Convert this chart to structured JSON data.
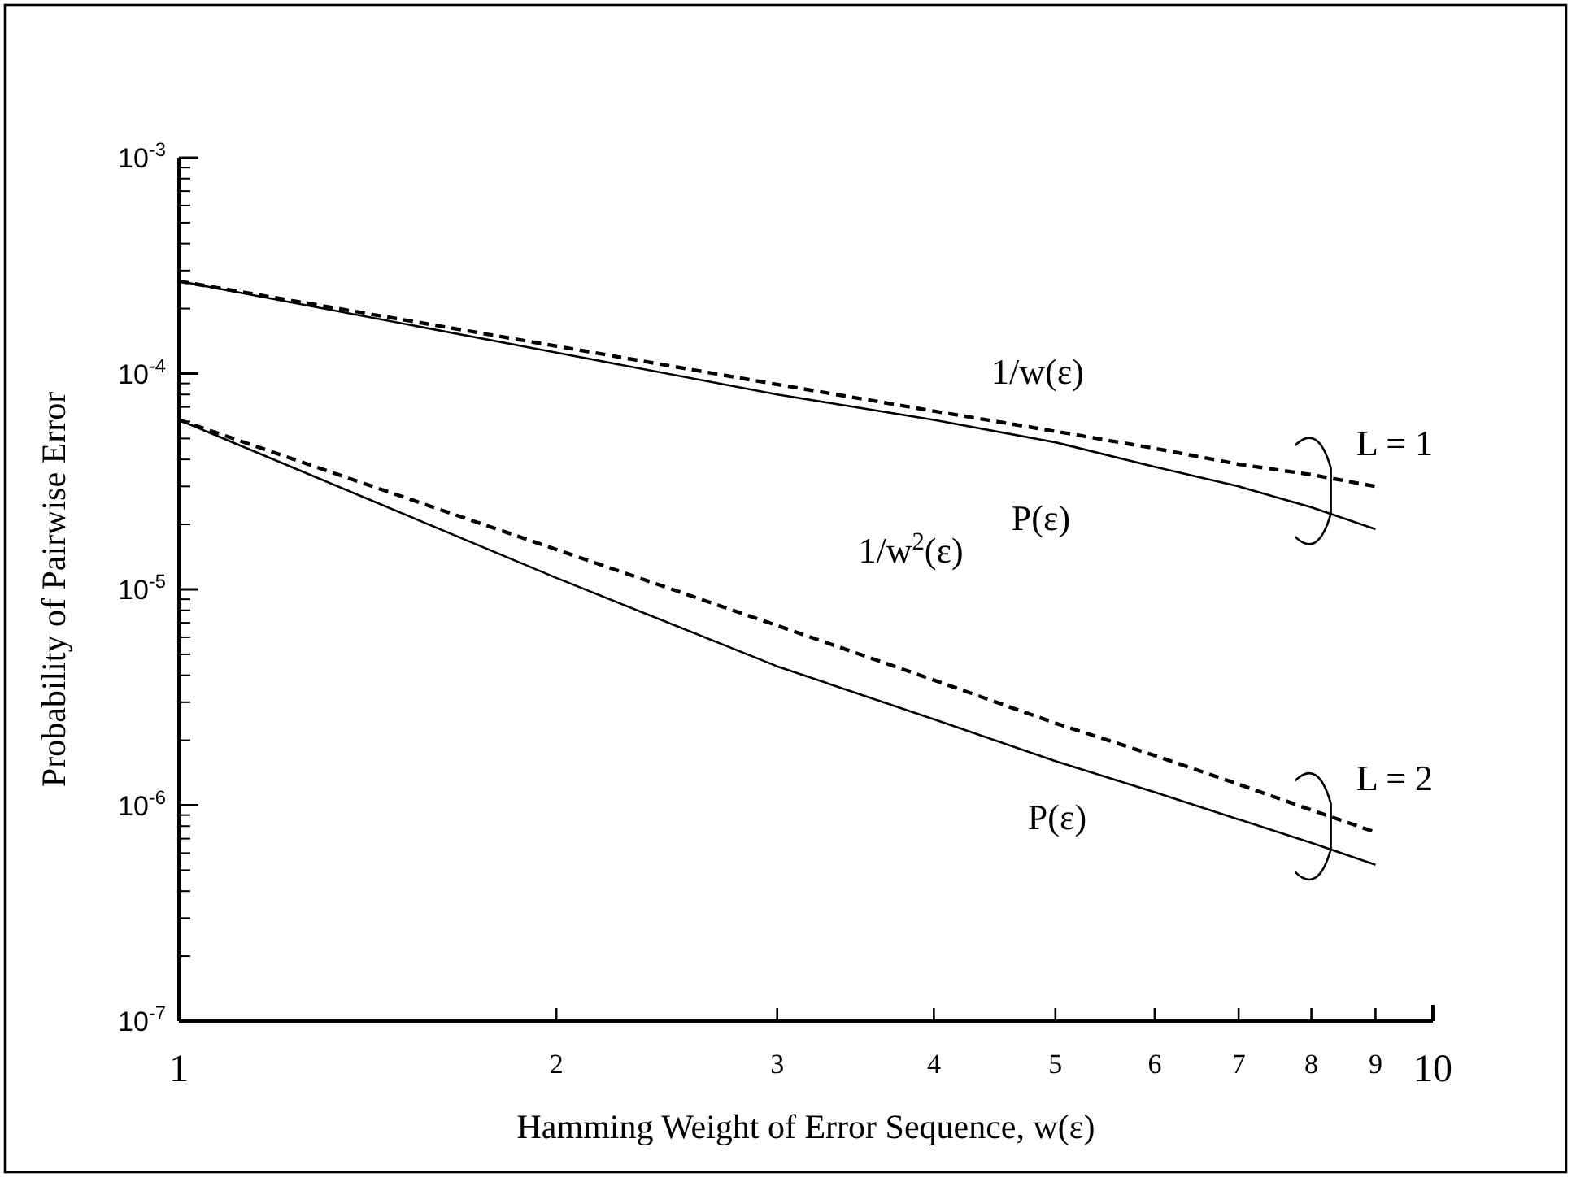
{
  "chart_data": {
    "type": "line",
    "xlabel": "Hamming Weight of Error Sequence, w(ε)",
    "ylabel": "Probability of Pairwise Error",
    "log": "xy",
    "xlim": [
      1,
      10
    ],
    "xticks": [
      1,
      2,
      3,
      4,
      5,
      6,
      7,
      8,
      9,
      10
    ],
    "ylim": [
      1e-07,
      0.001
    ],
    "yticks": [
      {
        "value": 1e-07,
        "label": "10$^{-7}$"
      },
      {
        "value": 1e-06,
        "label": "10$^{-6}$"
      },
      {
        "value": 1e-05,
        "label": "10$^{-5}$"
      },
      {
        "value": 0.0001,
        "label": "10$^{-4}$"
      },
      {
        "value": 0.001,
        "label": "10$^{-3}$"
      }
    ],
    "grid": false,
    "x": [
      1,
      2,
      3,
      4,
      5,
      6,
      7,
      8,
      9
    ],
    "series": [
      {
        "color": "#000000",
        "line_style": "dashed",
        "values": [
          0.000268,
          0.000134,
          8.9e-05,
          6.7e-05,
          5.4e-05,
          4.5e-05,
          3.8e-05,
          3.4e-05,
          3e-05
        ]
      },
      {
        "color": "#000000",
        "line_style": "solid",
        "values": [
          0.000268,
          0.000125,
          8e-05,
          6.1e-05,
          4.8e-05,
          3.7e-05,
          3e-05,
          2.4e-05,
          1.9e-05
        ]
      },
      {
        "color": "#000000",
        "line_style": "dashed",
        "values": [
          6.1e-05,
          1.53e-05,
          6.8e-06,
          3.8e-06,
          2.4e-06,
          1.7e-06,
          1.25e-06,
          9.5e-07,
          7.5e-07
        ]
      },
      {
        "color": "#000000",
        "line_style": "solid",
        "values": [
          6.1e-05,
          1.13e-05,
          4.4e-06,
          2.5e-06,
          1.6e-06,
          1.15e-06,
          8.6e-07,
          6.7e-07,
          5.3e-07
        ]
      }
    ],
    "annotations": [
      "1/w(ε)",
      "P(ε)",
      "L = 1",
      "1/w$^{2}$(ε)",
      "P(ε)",
      "L = 2"
    ]
  }
}
